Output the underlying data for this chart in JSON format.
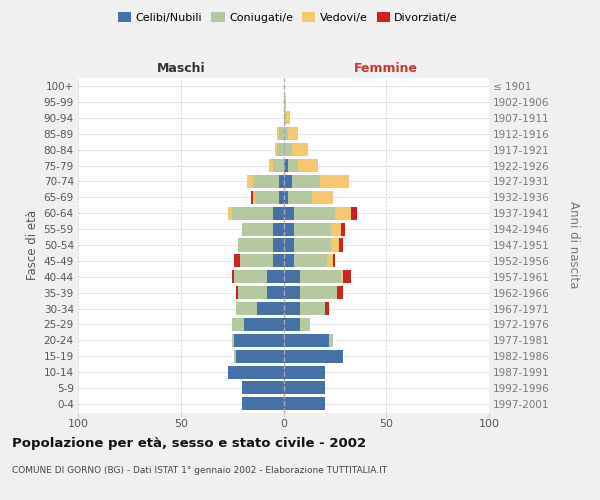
{
  "age_groups": [
    "0-4",
    "5-9",
    "10-14",
    "15-19",
    "20-24",
    "25-29",
    "30-34",
    "35-39",
    "40-44",
    "45-49",
    "50-54",
    "55-59",
    "60-64",
    "65-69",
    "70-74",
    "75-79",
    "80-84",
    "85-89",
    "90-94",
    "95-99",
    "100+"
  ],
  "birth_years": [
    "1997-2001",
    "1992-1996",
    "1987-1991",
    "1982-1986",
    "1977-1981",
    "1972-1976",
    "1967-1971",
    "1962-1966",
    "1957-1961",
    "1952-1956",
    "1947-1951",
    "1942-1946",
    "1937-1941",
    "1932-1936",
    "1927-1931",
    "1922-1926",
    "1917-1921",
    "1912-1916",
    "1907-1911",
    "1902-1906",
    "≤ 1901"
  ],
  "male_celibi": [
    20,
    20,
    27,
    23,
    24,
    19,
    13,
    8,
    8,
    5,
    5,
    5,
    5,
    2,
    2,
    0,
    0,
    0,
    0,
    0,
    0
  ],
  "male_coniugati": [
    0,
    0,
    0,
    1,
    1,
    6,
    10,
    14,
    16,
    16,
    17,
    15,
    20,
    12,
    13,
    5,
    3,
    2,
    0,
    0,
    0
  ],
  "male_vedovi": [
    0,
    0,
    0,
    0,
    0,
    0,
    0,
    0,
    0,
    0,
    0,
    0,
    2,
    1,
    3,
    2,
    1,
    1,
    0,
    0,
    0
  ],
  "male_divorziati": [
    0,
    0,
    0,
    0,
    0,
    0,
    0,
    1,
    1,
    3,
    0,
    0,
    0,
    1,
    0,
    0,
    0,
    0,
    0,
    0,
    0
  ],
  "female_nubili": [
    20,
    20,
    20,
    29,
    22,
    8,
    8,
    8,
    8,
    5,
    5,
    5,
    5,
    2,
    4,
    2,
    0,
    0,
    0,
    0,
    0
  ],
  "female_coniugate": [
    0,
    0,
    0,
    0,
    2,
    5,
    12,
    18,
    20,
    16,
    18,
    18,
    20,
    12,
    14,
    5,
    4,
    2,
    1,
    0,
    0
  ],
  "female_vedove": [
    0,
    0,
    0,
    0,
    0,
    0,
    0,
    0,
    1,
    3,
    4,
    5,
    8,
    10,
    14,
    10,
    8,
    5,
    2,
    1,
    0
  ],
  "female_divorziate": [
    0,
    0,
    0,
    0,
    0,
    0,
    2,
    3,
    4,
    1,
    2,
    2,
    3,
    0,
    0,
    0,
    0,
    0,
    0,
    0,
    0
  ],
  "color_celibi": "#4472a8",
  "color_coniugati": "#b5c9a0",
  "color_vedovi": "#f5c86e",
  "color_divorziati": "#cc2222",
  "xlim": 100,
  "title": "Popolazione per età, sesso e stato civile - 2002",
  "subtitle": "COMUNE DI GORNO (BG) - Dati ISTAT 1° gennaio 2002 - Elaborazione TUTTITALIA.IT",
  "ylabel_left": "Fasce di età",
  "ylabel_right": "Anni di nascita",
  "label_maschi": "Maschi",
  "label_femmine": "Femmine",
  "legend_labels": [
    "Celibi/Nubili",
    "Coniugati/e",
    "Vedovi/e",
    "Divorziati/e"
  ],
  "bg_color": "#f0f0f0",
  "plot_bg": "#ffffff"
}
